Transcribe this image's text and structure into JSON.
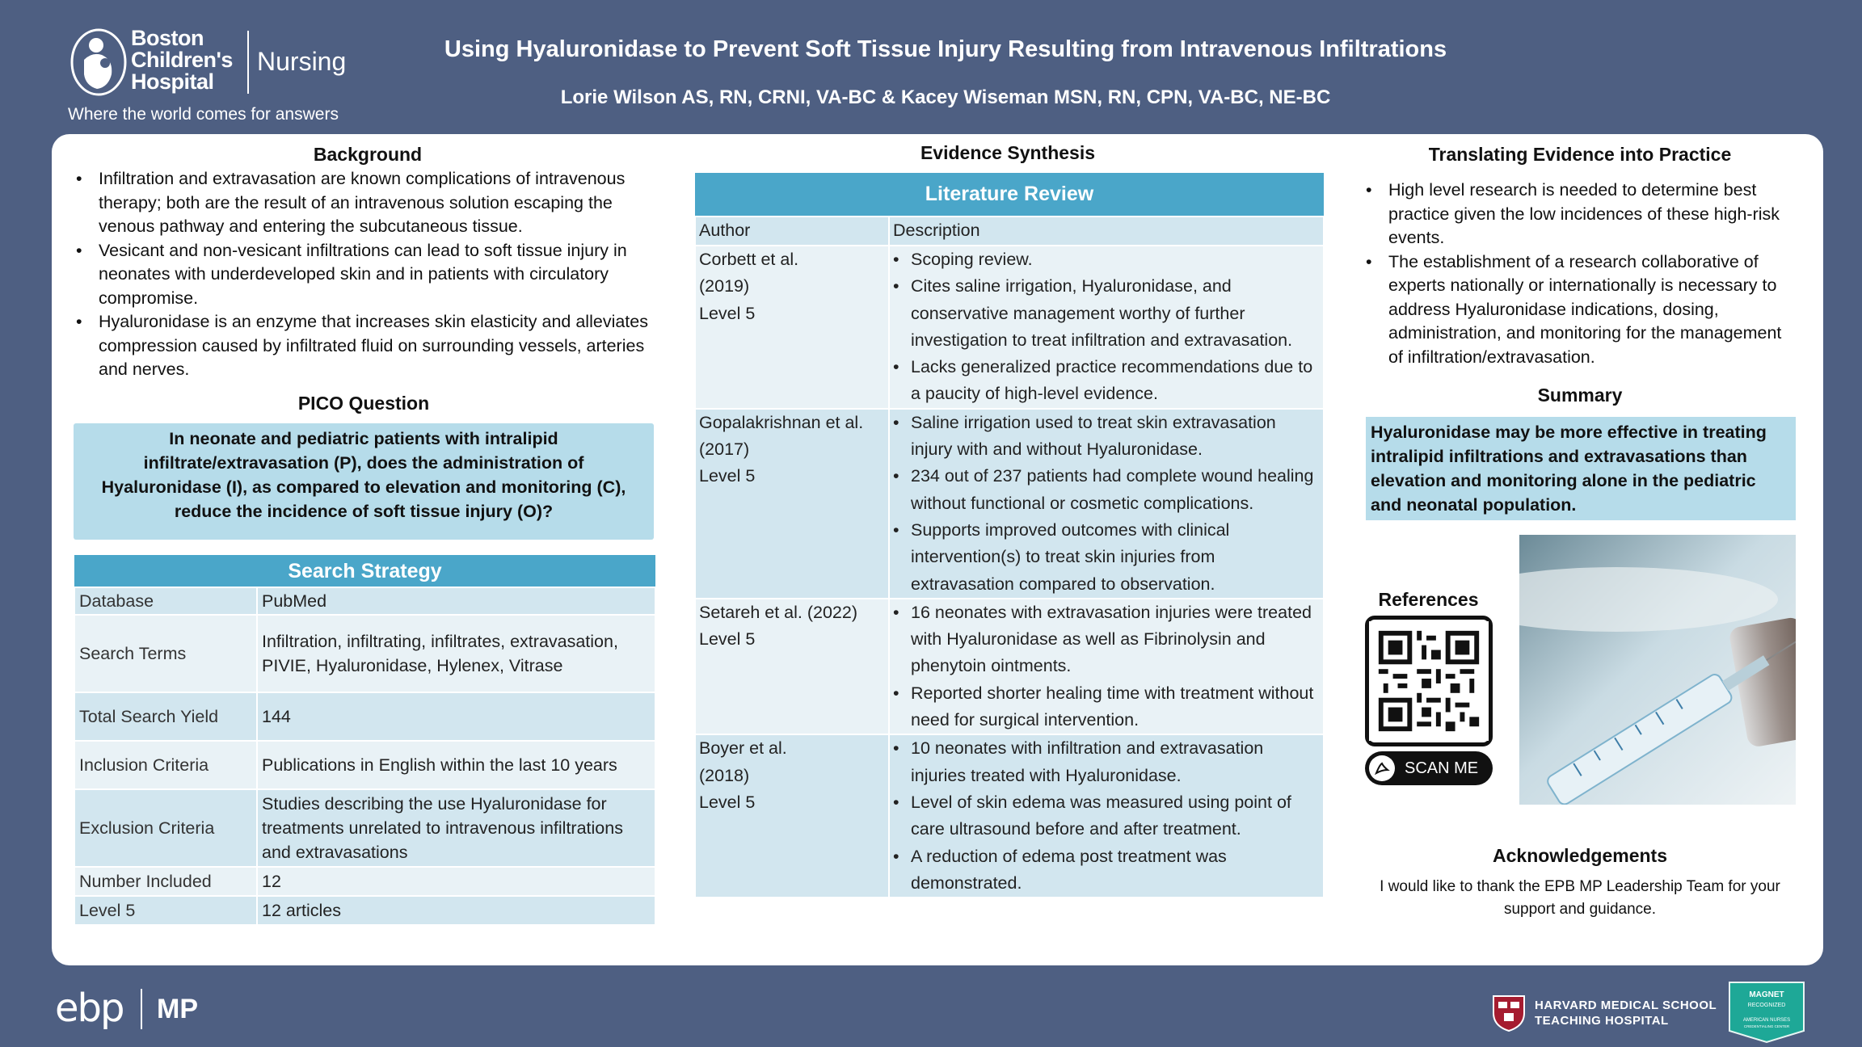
{
  "header": {
    "logo_line1": "Boston",
    "logo_line2": "Children's",
    "logo_line3": "Hospital",
    "logo_nursing": "Nursing",
    "tagline": "Where the world comes for answers",
    "title": "Using Hyaluronidase to Prevent Soft Tissue Injury Resulting from Intravenous Infiltrations",
    "authors": "Lorie Wilson AS, RN, CRNI, VA-BC  & Kacey Wiseman  MSN, RN, CPN, VA-BC, NE-BC"
  },
  "background": {
    "heading": "Background",
    "items": [
      "Infiltration and extravasation are known complications of intravenous therapy; both are the result of an intravenous solution escaping the venous pathway and entering the subcutaneous tissue.",
      "Vesicant and non-vesicant infiltrations can lead to soft tissue injury in neonates with underdeveloped skin and in patients with circulatory compromise.",
      "Hyaluronidase is an enzyme that increases skin elasticity and alleviates compression caused by infiltrated fluid on surrounding vessels, arteries and nerves."
    ]
  },
  "pico": {
    "heading": "PICO Question",
    "text": "In neonate and pediatric patients with intralipid infiltrate/extravasation (P), does the administration of Hyaluronidase (I), as compared to elevation and monitoring (C), reduce the incidence of soft tissue injury (O)?"
  },
  "search_strategy": {
    "heading": "Search Strategy",
    "rows": [
      {
        "key": "Database",
        "value": "PubMed"
      },
      {
        "key": "Search Terms",
        "value": "Infiltration, infiltrating, infiltrates, extravasation, PIVIE, Hyaluronidase, Hylenex, Vitrase"
      },
      {
        "key": "Total Search Yield",
        "value": "144"
      },
      {
        "key": "Inclusion Criteria",
        "value": "Publications in English within the last 10 years"
      },
      {
        "key": "Exclusion Criteria",
        "value": "Studies describing the use Hyaluronidase for treatments unrelated to intravenous infiltrations and extravasations"
      },
      {
        "key": "Number Included",
        "value": "12"
      },
      {
        "key": "Level 5",
        "value": "12 articles"
      }
    ]
  },
  "evidence": {
    "heading": "Evidence Synthesis",
    "table_title": "Literature Review",
    "col_author": "Author",
    "col_description": "Description",
    "rows": [
      {
        "author": [
          "Corbett et al.",
          "(2019)",
          "Level 5"
        ],
        "points": [
          "Scoping review.",
          "Cites saline irrigation, Hyaluronidase, and conservative management worthy of further investigation to treat infiltration and extravasation.",
          "Lacks generalized practice recommendations due to a paucity of high-level evidence."
        ]
      },
      {
        "author": [
          "Gopalakrishnan et al.",
          "(2017)",
          "Level 5"
        ],
        "points": [
          "Saline irrigation used to treat skin extravasation injury with and without Hyaluronidase.",
          "234 out of 237 patients had complete wound healing without functional or cosmetic complications.",
          "Supports improved outcomes with clinical intervention(s) to treat skin injuries from extravasation compared to observation."
        ]
      },
      {
        "author": [
          "Setareh et al. (2022)",
          "Level 5"
        ],
        "points": [
          "16 neonates with extravasation injuries were treated with Hyaluronidase as well as Fibrinolysin and phenytoin ointments.",
          "Reported shorter healing time with treatment without need for surgical intervention."
        ]
      },
      {
        "author": [
          "Boyer et al.",
          "(2018)",
          "Level 5"
        ],
        "points": [
          "10 neonates with infiltration and extravasation injuries treated with Hyaluronidase.",
          "Level of skin edema was measured using point of care ultrasound before and after treatment.",
          "A reduction of edema post treatment was demonstrated."
        ]
      }
    ]
  },
  "translating": {
    "heading": "Translating Evidence into Practice",
    "items": [
      "High level research is needed to determine best practice given the low incidences of these high-risk events.",
      "The establishment of a research collaborative of experts nationally or internationally is necessary to address Hyaluronidase indications, dosing, administration, and monitoring for the management of infiltration/extravasation."
    ]
  },
  "summary": {
    "heading": "Summary",
    "text": "Hyaluronidase may be more effective in treating intralipid infiltrations and extravasations than elevation and monitoring alone in the pediatric and neonatal population."
  },
  "references": {
    "heading": "References",
    "scan_label": "SCAN ME"
  },
  "acknowledgements": {
    "heading": "Acknowledgements",
    "text": "I would like to thank the EPB MP Leadership Team for your support and guidance."
  },
  "footer": {
    "ebp_logo": "ebp",
    "ebp_mp": "MP",
    "harvard_line1": "HARVARD MEDICAL SCHOOL",
    "harvard_line2": "TEACHING HOSPITAL",
    "magnet_line1": "MAGNET",
    "magnet_line2": "RECOGNIZED",
    "magnet_line3": "AMERICAN NURSES",
    "magnet_line4": "CREDENTIALING CENTER"
  },
  "colors": {
    "page_bg": "#4e5f82",
    "table_header": "#4aa6c9",
    "highlight_box": "#b6dcea",
    "row_dark": "#d2e6ef",
    "row_light": "#e9f2f6"
  }
}
